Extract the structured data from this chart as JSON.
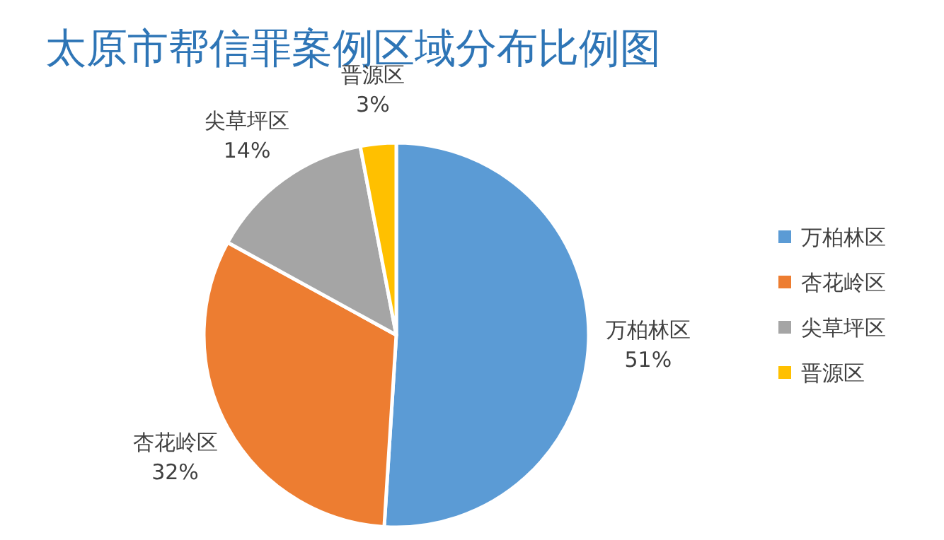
{
  "chart_data": {
    "type": "pie",
    "title": "太原市帮信罪案例区域分布比例图",
    "categories": [
      "万柏林区",
      "杏花岭区",
      "尖草坪区",
      "晋源区"
    ],
    "values": [
      51,
      32,
      14,
      3
    ],
    "colors": [
      "#5b9bd5",
      "#ed7d31",
      "#a5a5a5",
      "#ffc000"
    ],
    "value_labels": [
      "51%",
      "32%",
      "14%",
      "3%"
    ],
    "legend": "right"
  }
}
